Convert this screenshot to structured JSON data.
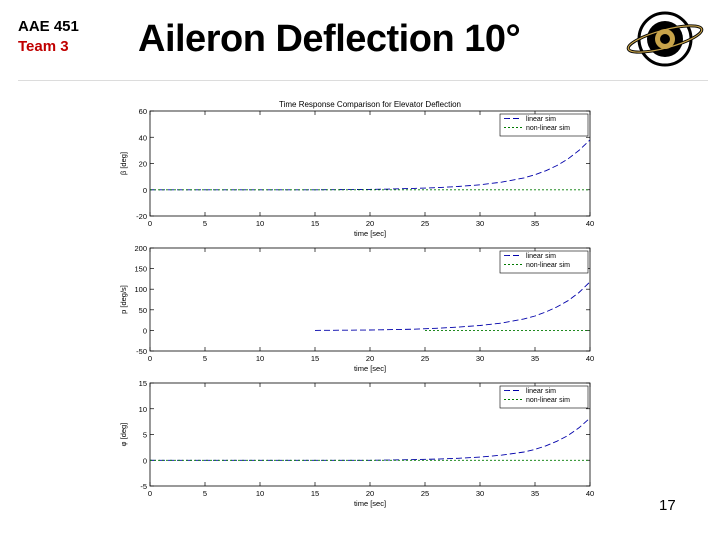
{
  "header": {
    "course": "AAE 451",
    "team": "Team 3",
    "title": "Aileron Deflection 10°"
  },
  "logo": {
    "text": "Purdue University Aeronautics & Astronautics",
    "icon": "purdue-aero-logo-icon"
  },
  "page_number": "17",
  "colors": {
    "linear": "#0000aa",
    "nonlinear": "#007a00",
    "team": "#c00000"
  },
  "chart_data": [
    {
      "type": "line",
      "title": "Time Response Comparison for Elevator Deflection",
      "xlabel": "time [sec]",
      "ylabel": "β [deg]",
      "xlim": [
        0,
        40
      ],
      "ylim": [
        -20,
        60
      ],
      "xticks": [
        0,
        5,
        10,
        15,
        20,
        25,
        30,
        35,
        40
      ],
      "yticks": [
        -20,
        0,
        20,
        40,
        60
      ],
      "legend": [
        "linear sim",
        "non-linear sim"
      ],
      "legend_position": "top-right",
      "series": [
        {
          "name": "linear sim",
          "style": "dashed",
          "x": [
            0,
            10,
            15,
            20,
            22,
            24,
            26,
            28,
            30,
            32,
            34,
            35,
            36,
            37,
            38,
            39,
            40
          ],
          "y": [
            0,
            0,
            0,
            0.3,
            0.6,
            1.0,
            1.6,
            2.5,
            3.8,
            5.8,
            9,
            11.5,
            14.5,
            18.5,
            23.5,
            30,
            38
          ]
        },
        {
          "name": "non-linear sim",
          "style": "dotted",
          "x": [
            0,
            10,
            20,
            25,
            30,
            35,
            40
          ],
          "y": [
            0,
            0,
            0,
            0,
            0,
            0,
            0
          ]
        }
      ]
    },
    {
      "type": "line",
      "title": "",
      "xlabel": "time [sec]",
      "ylabel": "p [deg/s]",
      "xlim": [
        0,
        40
      ],
      "ylim": [
        -50,
        200
      ],
      "xticks": [
        0,
        5,
        10,
        15,
        20,
        25,
        30,
        35,
        40
      ],
      "yticks": [
        -50,
        0,
        50,
        100,
        150,
        200
      ],
      "legend": [
        "linear sim",
        "non-linear sim"
      ],
      "legend_position": "top-right",
      "series": [
        {
          "name": "linear sim",
          "style": "dashed",
          "x": [
            15,
            20,
            22,
            24,
            26,
            28,
            30,
            32,
            34,
            35,
            36,
            37,
            38,
            39,
            40
          ],
          "y": [
            0,
            1,
            2,
            3,
            5,
            8,
            12,
            18,
            28,
            35,
            45,
            57,
            72,
            92,
            118
          ]
        },
        {
          "name": "non-linear sim",
          "style": "dotted",
          "x": [
            25,
            27,
            29,
            31,
            33,
            35,
            37,
            38,
            40
          ],
          "y": [
            0,
            0,
            0,
            0,
            0,
            0,
            0,
            0,
            0
          ]
        }
      ]
    },
    {
      "type": "line",
      "title": "",
      "xlabel": "time [sec]",
      "ylabel": "φ [deg]",
      "xlim": [
        0,
        40
      ],
      "ylim": [
        -5,
        15
      ],
      "xticks": [
        0,
        5,
        10,
        15,
        20,
        25,
        30,
        35,
        40
      ],
      "yticks": [
        -5,
        0,
        5,
        10,
        15
      ],
      "legend": [
        "linear sim",
        "non-linear sim"
      ],
      "legend_position": "top-right",
      "series": [
        {
          "name": "linear sim",
          "style": "dashed",
          "x": [
            0,
            10,
            20,
            22,
            24,
            26,
            28,
            30,
            32,
            34,
            35,
            36,
            37,
            38,
            39,
            40
          ],
          "y": [
            0,
            0,
            0,
            0.05,
            0.12,
            0.22,
            0.38,
            0.62,
            1.0,
            1.6,
            2.1,
            2.8,
            3.7,
            4.8,
            6.3,
            8.2
          ]
        },
        {
          "name": "non-linear sim",
          "style": "dotted",
          "x": [
            0,
            10,
            20,
            30,
            40
          ],
          "y": [
            0,
            0,
            0,
            0,
            0
          ]
        }
      ]
    }
  ]
}
